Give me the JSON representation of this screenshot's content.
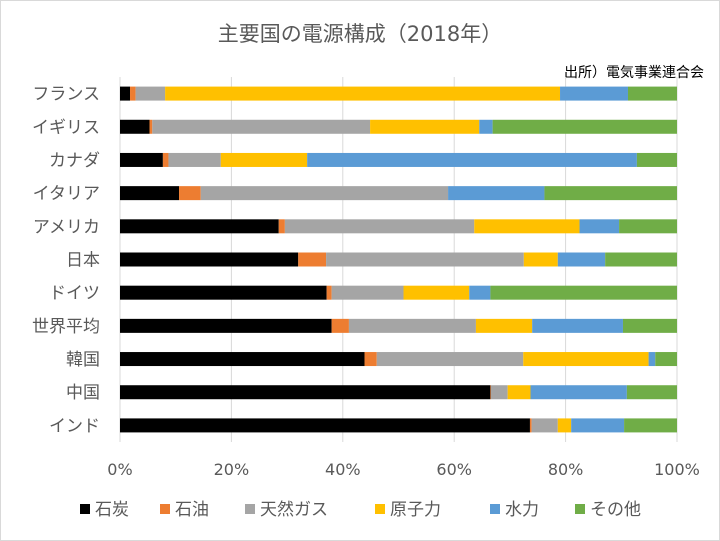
{
  "chart_data": {
    "type": "bar",
    "orientation": "horizontal",
    "stacked": "percent",
    "title": "主要国の電源構成（2018年）",
    "source": "出所）電気事業連合会",
    "categories": [
      "フランス",
      "イギリス",
      "カナダ",
      "イタリア",
      "アメリカ",
      "日本",
      "ドイツ",
      "世界平均",
      "韓国",
      "中国",
      "インド"
    ],
    "series": [
      {
        "name": "石炭",
        "color": "#000000",
        "values": [
          1.8,
          5.3,
          7.7,
          10.6,
          28.5,
          32.0,
          37.1,
          38.0,
          43.9,
          66.5,
          73.6
        ]
      },
      {
        "name": "石油",
        "color": "#ED7D31",
        "values": [
          1.0,
          0.5,
          1.0,
          3.9,
          1.1,
          5.0,
          0.9,
          3.1,
          2.2,
          0.1,
          0.3
        ]
      },
      {
        "name": "天然ガス",
        "color": "#A5A5A5",
        "values": [
          5.3,
          39.1,
          9.4,
          44.4,
          34.0,
          35.5,
          12.9,
          22.8,
          26.3,
          3.0,
          4.7
        ]
      },
      {
        "name": "原子力",
        "color": "#FFC000",
        "values": [
          70.9,
          19.6,
          15.5,
          0,
          18.9,
          6.1,
          11.8,
          10.1,
          22.5,
          4.1,
          2.4
        ]
      },
      {
        "name": "水力",
        "color": "#5B9BD5",
        "values": [
          12.2,
          2.4,
          59.2,
          17.3,
          7.1,
          8.5,
          3.8,
          16.3,
          1.2,
          17.3,
          9.5
        ]
      },
      {
        "name": "その他",
        "color": "#70AD47",
        "values": [
          8.8,
          33.1,
          7.2,
          23.8,
          10.4,
          12.9,
          33.5,
          9.7,
          3.9,
          9.0,
          9.5
        ]
      }
    ],
    "xlim": [
      0,
      100
    ],
    "xticks": [
      "0%",
      "20%",
      "40%",
      "60%",
      "80%",
      "100%"
    ],
    "grid": "vertical",
    "legend": "bottom"
  }
}
